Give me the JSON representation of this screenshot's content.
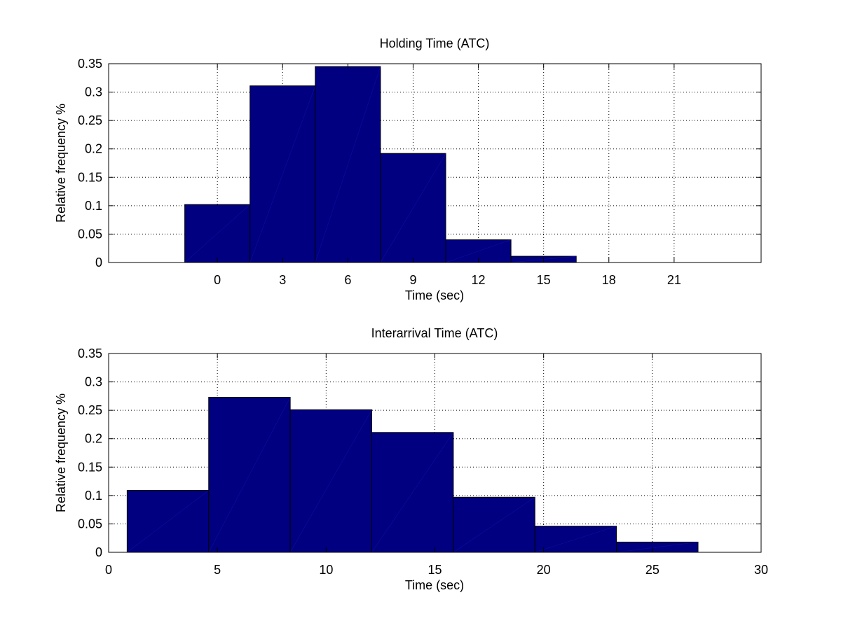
{
  "chart_data": [
    {
      "type": "bar",
      "title": "Holding Time (ATC)",
      "xlabel": "Time (sec)",
      "ylabel": "Relative frequency %",
      "xlim": [
        -5,
        25
      ],
      "ylim": [
        0,
        0.35
      ],
      "xticks": [
        0,
        3,
        6,
        9,
        12,
        15,
        18,
        21
      ],
      "yticks": [
        0,
        0.05,
        0.1,
        0.15,
        0.2,
        0.25,
        0.3,
        0.35
      ],
      "ytick_labels": [
        "0",
        "0.05",
        "0.1",
        "0.15",
        "0.2",
        "0.25",
        "0.3",
        "0.35"
      ],
      "bin_edges": [
        -1.5,
        1.5,
        4.5,
        7.5,
        10.5,
        13.5,
        16.5
      ],
      "values": [
        0.102,
        0.311,
        0.345,
        0.192,
        0.04,
        0.011
      ],
      "grid": true,
      "bar_color": "#000080"
    },
    {
      "type": "bar",
      "title": "Interarrival Time (ATC)",
      "xlabel": "Time (sec)",
      "ylabel": "Relative frequency %",
      "xlim": [
        0,
        30
      ],
      "ylim": [
        0,
        0.35
      ],
      "xticks": [
        0,
        5,
        10,
        15,
        20,
        25,
        30
      ],
      "yticks": [
        0,
        0.05,
        0.1,
        0.15,
        0.2,
        0.25,
        0.3,
        0.35
      ],
      "ytick_labels": [
        "0",
        "0.05",
        "0.1",
        "0.15",
        "0.2",
        "0.25",
        "0.3",
        "0.35"
      ],
      "bin_edges": [
        0.85,
        4.6,
        8.35,
        12.1,
        15.85,
        19.6,
        23.35,
        27.1
      ],
      "values": [
        0.109,
        0.273,
        0.251,
        0.211,
        0.097,
        0.046,
        0.018
      ],
      "grid": true,
      "bar_color": "#000080"
    }
  ]
}
